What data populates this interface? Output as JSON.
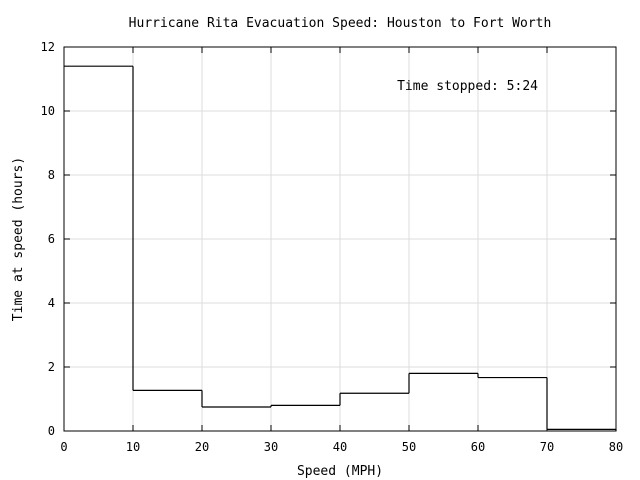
{
  "chart_data": {
    "type": "bar",
    "style": "step-histogram",
    "title": "Hurricane Rita Evacuation Speed: Houston to Fort Worth",
    "xlabel": "Speed (MPH)",
    "ylabel": "Time at speed (hours)",
    "xlim": [
      0,
      80
    ],
    "ylim": [
      0,
      12
    ],
    "x_ticks": [
      0,
      10,
      20,
      30,
      40,
      50,
      60,
      70,
      80
    ],
    "y_ticks": [
      0,
      2,
      4,
      6,
      8,
      10,
      12
    ],
    "grid": true,
    "bin_edges": [
      0,
      10,
      20,
      30,
      40,
      50,
      60,
      70,
      80
    ],
    "categories": [
      "0-10",
      "10-20",
      "20-30",
      "30-40",
      "40-50",
      "50-60",
      "60-70",
      "70-80"
    ],
    "values": [
      11.4,
      1.27,
      0.75,
      0.8,
      1.18,
      1.8,
      1.67,
      0.05
    ],
    "annotation": "Time stopped: 5:24",
    "annotation_placement": "top-right",
    "line_color": "#000000",
    "grid_color": "#dcdcdc"
  }
}
